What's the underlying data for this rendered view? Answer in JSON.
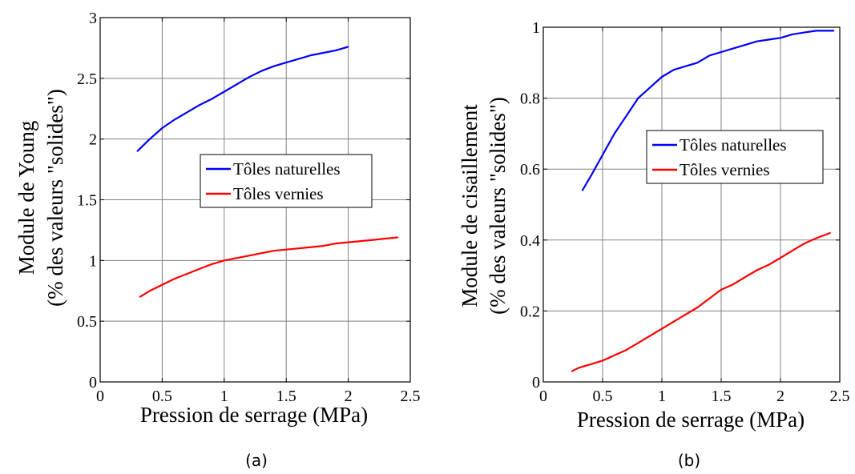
{
  "chart_data": [
    {
      "type": "line",
      "caption": "(a)",
      "xlabel": "Pression de serrage (MPa)",
      "ylabel": [
        "Module de Young",
        "(% des valeurs \"solides\")"
      ],
      "xlim": [
        0,
        2.5
      ],
      "ylim": [
        0,
        3
      ],
      "xticks": [
        "0",
        "0.5",
        "1",
        "1.5",
        "2",
        "2.5"
      ],
      "yticks": [
        "0",
        "0.5",
        "1",
        "1.5",
        "2",
        "2.5",
        "3"
      ],
      "grid": true,
      "legend_position": "center-right",
      "series": [
        {
          "name": "Tôles naturelles",
          "color": "#0000ff",
          "x": [
            0.3,
            0.4,
            0.5,
            0.6,
            0.7,
            0.8,
            0.9,
            1.0,
            1.1,
            1.2,
            1.3,
            1.4,
            1.5,
            1.6,
            1.7,
            1.8,
            1.9,
            2.0
          ],
          "y": [
            1.9,
            2.0,
            2.09,
            2.16,
            2.22,
            2.28,
            2.33,
            2.39,
            2.45,
            2.51,
            2.56,
            2.6,
            2.63,
            2.66,
            2.69,
            2.71,
            2.73,
            2.76
          ]
        },
        {
          "name": "Tôles vernies",
          "color": "#ff0000",
          "x": [
            0.32,
            0.4,
            0.5,
            0.6,
            0.7,
            0.8,
            0.9,
            1.0,
            1.1,
            1.2,
            1.3,
            1.4,
            1.5,
            1.6,
            1.7,
            1.8,
            1.9,
            2.0,
            2.1,
            2.2,
            2.3,
            2.4
          ],
          "y": [
            0.7,
            0.75,
            0.8,
            0.85,
            0.89,
            0.93,
            0.97,
            1.0,
            1.02,
            1.04,
            1.06,
            1.08,
            1.09,
            1.1,
            1.11,
            1.12,
            1.14,
            1.15,
            1.16,
            1.17,
            1.18,
            1.19
          ]
        }
      ]
    },
    {
      "type": "line",
      "caption": "(b)",
      "xlabel": "Pression de serrage (MPa)",
      "ylabel": [
        "Module de cisaillement",
        "(% des valeurs \"solides\")"
      ],
      "xlim": [
        0,
        2.5
      ],
      "ylim": [
        0,
        1
      ],
      "xticks": [
        "0",
        "0.5",
        "1",
        "1.5",
        "2",
        "2.5"
      ],
      "yticks": [
        "0",
        "0.2",
        "0.4",
        "0.6",
        "0.8",
        "1"
      ],
      "grid": true,
      "legend_position": "center-right",
      "series": [
        {
          "name": "Tôles naturelles",
          "color": "#0000ff",
          "x": [
            0.33,
            0.4,
            0.5,
            0.6,
            0.7,
            0.8,
            0.9,
            1.0,
            1.1,
            1.2,
            1.3,
            1.4,
            1.5,
            1.6,
            1.7,
            1.8,
            1.9,
            2.0,
            2.1,
            2.2,
            2.3,
            2.45
          ],
          "y": [
            0.54,
            0.58,
            0.64,
            0.7,
            0.75,
            0.8,
            0.83,
            0.86,
            0.88,
            0.89,
            0.9,
            0.92,
            0.93,
            0.94,
            0.95,
            0.96,
            0.965,
            0.97,
            0.98,
            0.985,
            0.99,
            0.99
          ]
        },
        {
          "name": "Tôles vernies",
          "color": "#ff0000",
          "x": [
            0.24,
            0.3,
            0.4,
            0.5,
            0.6,
            0.7,
            0.8,
            0.9,
            1.0,
            1.1,
            1.2,
            1.3,
            1.4,
            1.5,
            1.6,
            1.7,
            1.8,
            1.9,
            2.0,
            2.1,
            2.2,
            2.3,
            2.42
          ],
          "y": [
            0.03,
            0.04,
            0.05,
            0.06,
            0.075,
            0.09,
            0.11,
            0.13,
            0.15,
            0.17,
            0.19,
            0.21,
            0.235,
            0.26,
            0.275,
            0.295,
            0.315,
            0.33,
            0.35,
            0.37,
            0.39,
            0.405,
            0.42
          ]
        }
      ]
    }
  ]
}
